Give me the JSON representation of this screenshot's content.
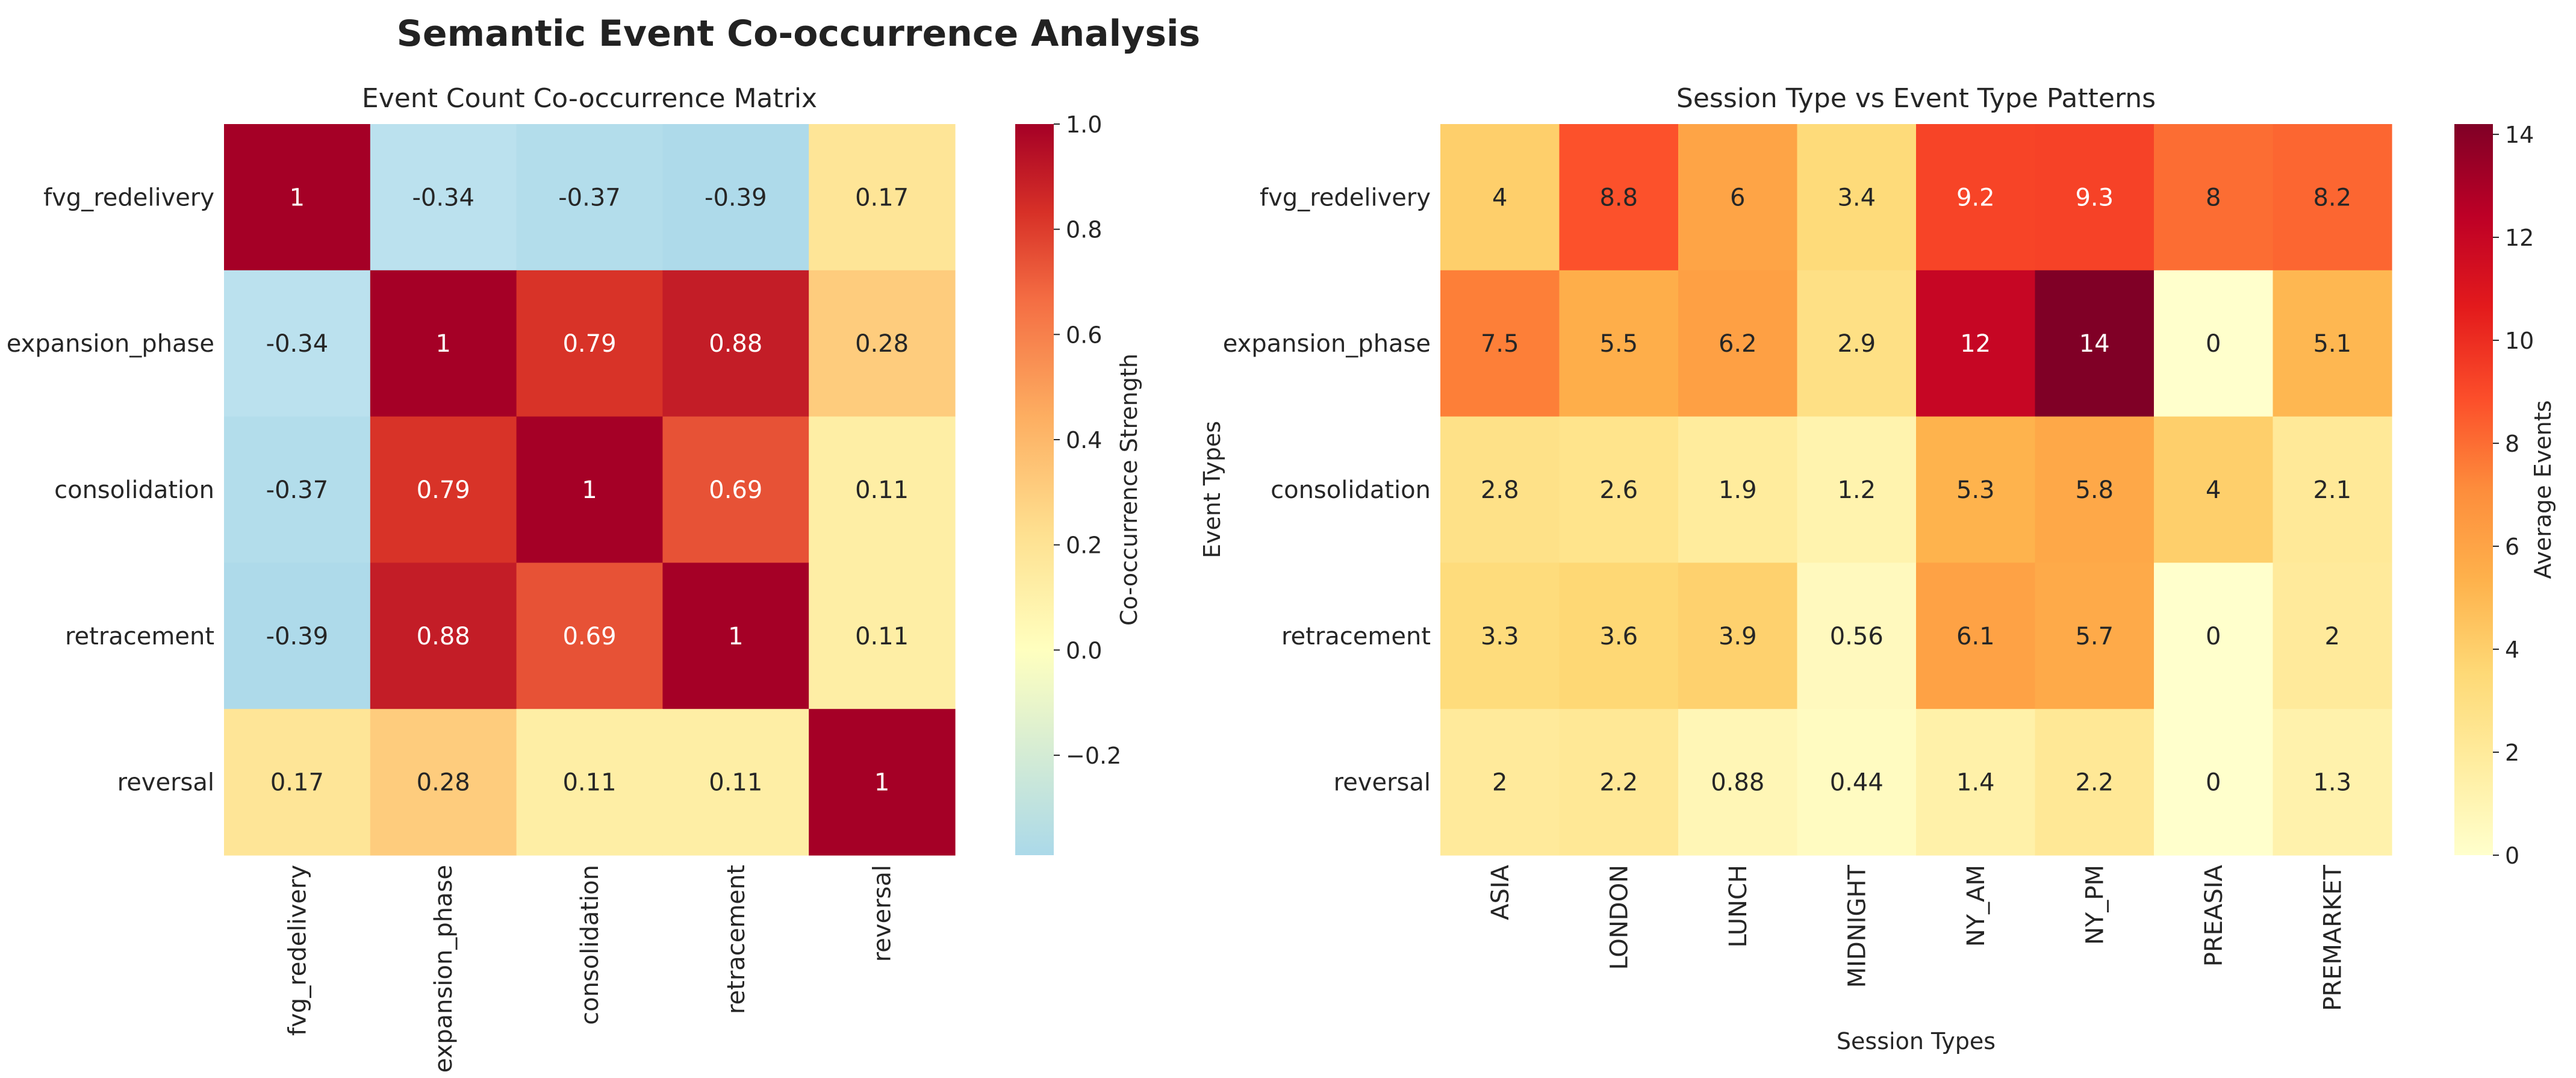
{
  "figure": {
    "suptitle": "Semantic Event Co-occurrence Analysis"
  },
  "chart_data": [
    {
      "type": "heatmap",
      "title": "Event Count Co-occurrence Matrix",
      "xlabel": "",
      "ylabel": "",
      "x_labels": [
        "fvg_redelivery",
        "expansion_phase",
        "consolidation",
        "retracement",
        "reversal"
      ],
      "y_labels": [
        "fvg_redelivery",
        "expansion_phase",
        "consolidation",
        "retracement",
        "reversal"
      ],
      "values": [
        [
          1,
          -0.34,
          -0.37,
          -0.39,
          0.17
        ],
        [
          -0.34,
          1,
          0.79,
          0.88,
          0.28
        ],
        [
          -0.37,
          0.79,
          1,
          0.69,
          0.11
        ],
        [
          -0.39,
          0.88,
          0.69,
          1,
          0.11
        ],
        [
          0.17,
          0.28,
          0.11,
          0.11,
          1
        ]
      ],
      "value_labels": [
        [
          "1",
          "-0.34",
          "-0.37",
          "-0.39",
          "0.17"
        ],
        [
          "-0.34",
          "1",
          "0.79",
          "0.88",
          "0.28"
        ],
        [
          "-0.37",
          "0.79",
          "1",
          "0.69",
          "0.11"
        ],
        [
          "-0.39",
          "0.88",
          "0.69",
          "1",
          "0.11"
        ],
        [
          "0.17",
          "0.28",
          "0.11",
          "0.11",
          "1"
        ]
      ],
      "colormap": "RdYlBu_r",
      "center": 0,
      "vmin": -0.39,
      "vmax": 1.0,
      "colorbar": {
        "label": "Co-occurrence Strength",
        "ticks": [
          -0.2,
          0,
          0.2,
          0.4,
          0.6,
          0.8,
          1.0
        ],
        "tick_labels": [
          "−0.2",
          "0.0",
          "0.2",
          "0.4",
          "0.6",
          "0.8",
          "1.0"
        ]
      }
    },
    {
      "type": "heatmap",
      "title": "Session Type vs Event Type Patterns",
      "xlabel": "Session Types",
      "ylabel": "Event Types",
      "x_labels": [
        "ASIA",
        "LONDON",
        "LUNCH",
        "MIDNIGHT",
        "NY_AM",
        "NY_PM",
        "PREASIA",
        "PREMARKET"
      ],
      "y_labels": [
        "fvg_redelivery",
        "expansion_phase",
        "consolidation",
        "retracement",
        "reversal"
      ],
      "values": [
        [
          4,
          8.8,
          6,
          3.4,
          9.2,
          9.3,
          8,
          8.2
        ],
        [
          7.5,
          5.5,
          6.2,
          2.9,
          12,
          14.2,
          0,
          5.1
        ],
        [
          2.8,
          2.6,
          1.9,
          1.2,
          5.3,
          5.8,
          4,
          2.1
        ],
        [
          3.3,
          3.6,
          3.9,
          0.56,
          6.1,
          5.7,
          0,
          2
        ],
        [
          2,
          2.2,
          0.88,
          0.44,
          1.4,
          2.2,
          0,
          1.3
        ]
      ],
      "value_labels": [
        [
          "4",
          "8.8",
          "6",
          "3.4",
          "9.2",
          "9.3",
          "8",
          "8.2"
        ],
        [
          "7.5",
          "5.5",
          "6.2",
          "2.9",
          "12",
          "14",
          "0",
          "5.1"
        ],
        [
          "2.8",
          "2.6",
          "1.9",
          "1.2",
          "5.3",
          "5.8",
          "4",
          "2.1"
        ],
        [
          "3.3",
          "3.6",
          "3.9",
          "0.56",
          "6.1",
          "5.7",
          "0",
          "2"
        ],
        [
          "2",
          "2.2",
          "0.88",
          "0.44",
          "1.4",
          "2.2",
          "0",
          "1.3"
        ]
      ],
      "colormap": "YlOrRd",
      "vmin": 0,
      "vmax": 14.2,
      "colorbar": {
        "label": "Average Events",
        "ticks": [
          0,
          2,
          4,
          6,
          8,
          10,
          12,
          14
        ],
        "tick_labels": [
          "0",
          "2",
          "4",
          "6",
          "8",
          "10",
          "12",
          "14"
        ]
      }
    }
  ]
}
